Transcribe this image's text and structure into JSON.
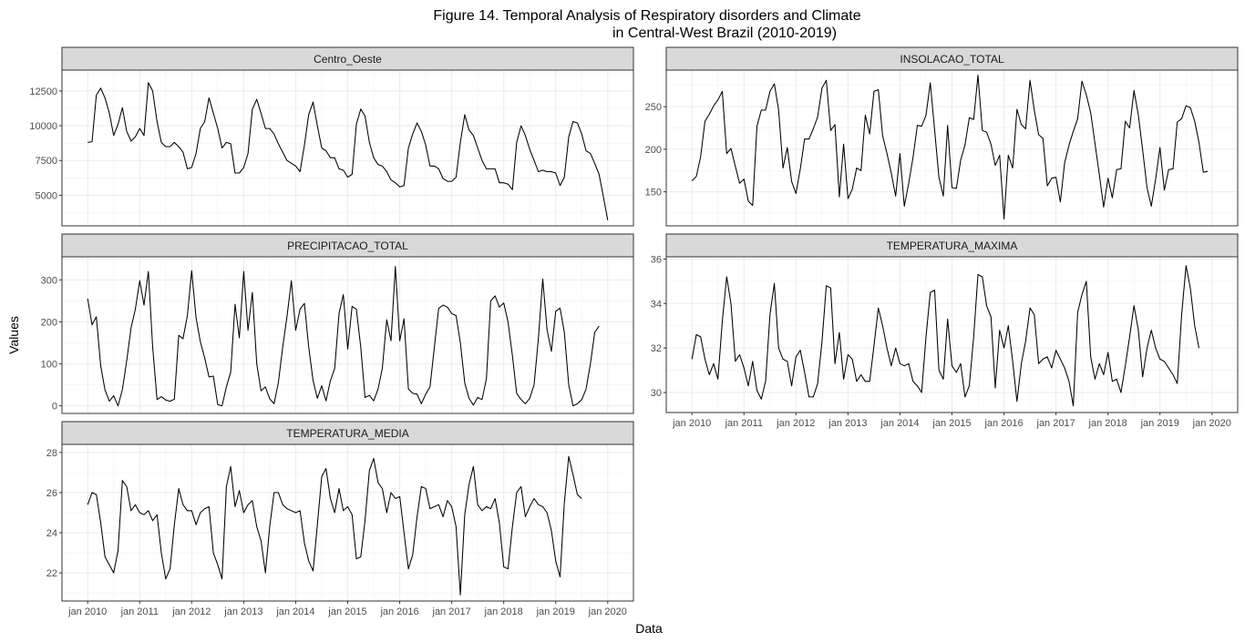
{
  "title_line1": "Figure 14. Temporal Analysis of Respiratory disorders and Climate",
  "title_line2": "in Central-West Brazil (2010-2019)",
  "xlabel": "Data",
  "ylabel": "Values",
  "chart_data": {
    "type": "line",
    "x_start": "2010-01",
    "x_tick_labels": [
      "jan 2010",
      "jan 2011",
      "jan 2012",
      "jan 2013",
      "jan 2014",
      "jan 2015",
      "jan 2016",
      "jan 2017",
      "jan 2018",
      "jan 2019",
      "jan 2020"
    ],
    "grid": true,
    "panels": [
      {
        "name": "Centro_Oeste",
        "yticks": [
          5000,
          7500,
          10000,
          12500
        ],
        "ylim": [
          2800,
          14000
        ],
        "values": [
          8800,
          8850,
          12200,
          12700,
          12000,
          10900,
          9300,
          10100,
          11300,
          9600,
          8900,
          9200,
          9800,
          9300,
          13100,
          12500,
          10300,
          8800,
          8500,
          8500,
          8800,
          8500,
          8100,
          6900,
          7000,
          8000,
          9800,
          10300,
          12000,
          10900,
          9800,
          8400,
          8800,
          8700,
          6600,
          6600,
          7000,
          8000,
          11200,
          11900,
          10900,
          9800,
          9800,
          9400,
          8700,
          8100,
          7500,
          7300,
          7100,
          6700,
          8600,
          10800,
          11700,
          10000,
          8400,
          8200,
          7700,
          7700,
          6900,
          6800,
          6300,
          6500,
          10100,
          11200,
          10700,
          8800,
          7700,
          7200,
          7100,
          6700,
          6100,
          5900,
          5600,
          5700,
          8400,
          9400,
          10200,
          9600,
          8600,
          7100,
          7100,
          6900,
          6200,
          6000,
          6000,
          6300,
          8800,
          10800,
          9700,
          9300,
          8400,
          7500,
          6900,
          6900,
          6900,
          5900,
          5900,
          5800,
          5400,
          8800,
          10000,
          9300,
          8300,
          7500,
          6700,
          6800,
          6700,
          6700,
          6600,
          5700,
          6300,
          9200,
          10300,
          10200,
          9400,
          8200,
          8000,
          7300,
          6500,
          4900,
          3200
        ]
      },
      {
        "name": "INSOLACAO_TOTAL",
        "yticks": [
          150,
          200,
          250
        ],
        "ylim": [
          110,
          293
        ],
        "values": [
          163,
          168,
          191,
          233,
          241,
          251,
          258,
          268,
          195,
          201,
          180,
          160,
          165,
          139,
          134,
          227,
          246,
          246,
          268,
          277,
          246,
          178,
          202,
          162,
          148,
          177,
          212,
          212,
          224,
          238,
          272,
          281,
          222,
          229,
          144,
          206,
          142,
          153,
          178,
          175,
          240,
          218,
          268,
          270,
          216,
          195,
          172,
          145,
          195,
          133,
          160,
          190,
          228,
          227,
          240,
          278,
          222,
          167,
          145,
          228,
          155,
          154,
          187,
          205,
          237,
          235,
          287,
          222,
          220,
          206,
          181,
          193,
          118,
          193,
          178,
          247,
          229,
          224,
          281,
          246,
          217,
          213,
          157,
          166,
          167,
          138,
          184,
          205,
          221,
          236,
          280,
          264,
          243,
          207,
          170,
          132,
          166,
          143,
          176,
          177,
          233,
          225,
          269,
          240,
          199,
          155,
          133,
          165,
          202,
          152,
          176,
          177,
          232,
          236,
          251,
          249,
          233,
          208,
          173,
          174
        ]
      },
      {
        "name": "PRECIPITACAO_TOTAL",
        "yticks": [
          0,
          100,
          200,
          300
        ],
        "ylim": [
          -18,
          355
        ],
        "values": [
          255,
          193,
          212,
          95,
          38,
          11,
          24,
          0,
          39,
          107,
          186,
          230,
          298,
          240,
          320,
          140,
          15,
          22,
          14,
          11,
          16,
          168,
          160,
          215,
          322,
          210,
          153,
          114,
          69,
          71,
          3,
          0,
          45,
          80,
          242,
          162,
          320,
          180,
          270,
          100,
          36,
          45,
          17,
          5,
          55,
          140,
          213,
          298,
          180,
          230,
          244,
          140,
          60,
          18,
          48,
          12,
          60,
          89,
          220,
          265,
          135,
          237,
          230,
          140,
          20,
          25,
          12,
          40,
          90,
          205,
          155,
          332,
          155,
          207,
          40,
          30,
          28,
          5,
          28,
          45,
          140,
          232,
          240,
          235,
          220,
          215,
          150,
          55,
          18,
          2,
          20,
          15,
          65,
          250,
          262,
          235,
          245,
          200,
          120,
          30,
          15,
          5,
          18,
          50,
          160,
          302,
          182,
          130,
          225,
          233,
          175,
          50,
          0,
          5,
          15,
          40,
          100,
          175,
          190
        ]
      },
      {
        "name": "TEMPERATURA_MAXIMA",
        "yticks": [
          30,
          32,
          34,
          36
        ],
        "ylim": [
          29.1,
          36.1
        ],
        "values": [
          31.5,
          32.6,
          32.5,
          31.5,
          30.8,
          31.3,
          30.6,
          33.2,
          35.2,
          34.0,
          31.4,
          31.7,
          31.1,
          30.3,
          31.4,
          30.1,
          29.7,
          30.5,
          33.5,
          34.9,
          32.0,
          31.5,
          31.4,
          30.3,
          31.6,
          31.9,
          30.9,
          29.8,
          29.8,
          30.4,
          32.3,
          34.8,
          34.7,
          31.3,
          32.7,
          30.6,
          31.7,
          31.5,
          30.5,
          30.8,
          30.5,
          30.5,
          32.1,
          33.8,
          33.0,
          32.0,
          31.2,
          32.0,
          31.3,
          31.2,
          31.3,
          30.5,
          30.3,
          30.0,
          32.5,
          34.5,
          34.6,
          31.0,
          30.6,
          33.3,
          31.2,
          30.9,
          31.3,
          29.8,
          30.3,
          32.5,
          35.3,
          35.2,
          33.9,
          33.4,
          30.2,
          32.8,
          32.0,
          33.0,
          31.4,
          29.6,
          31.3,
          32.3,
          33.8,
          33.5,
          31.3,
          31.5,
          31.6,
          31.1,
          31.9,
          31.5,
          31.1,
          30.5,
          29.4,
          33.6,
          34.4,
          35.0,
          31.6,
          30.6,
          31.3,
          30.8,
          31.8,
          30.5,
          30.6,
          30.0,
          31.2,
          32.5,
          33.9,
          32.8,
          30.7,
          32.0,
          32.8,
          32.0,
          31.5,
          31.4,
          31.1,
          30.8,
          30.4,
          33.5,
          35.7,
          34.7,
          33.0,
          32.0
        ]
      },
      {
        "name": "TEMPERATURA_MEDIA",
        "yticks": [
          22,
          24,
          26,
          28
        ],
        "ylim": [
          20.6,
          28.4
        ],
        "values": [
          25.4,
          26.0,
          25.9,
          24.5,
          22.8,
          22.4,
          22.0,
          23.1,
          26.6,
          26.3,
          25.1,
          25.4,
          25.0,
          24.9,
          25.1,
          24.6,
          24.9,
          23.0,
          21.7,
          22.2,
          24.4,
          26.2,
          25.4,
          25.1,
          25.1,
          24.4,
          25.0,
          25.2,
          25.3,
          23.0,
          22.4,
          21.7,
          26.3,
          27.3,
          25.3,
          26.1,
          25.0,
          25.4,
          25.6,
          24.3,
          23.6,
          22.0,
          24.3,
          26.0,
          26.0,
          25.4,
          25.2,
          25.1,
          25.0,
          25.1,
          23.5,
          22.6,
          22.1,
          24.4,
          26.8,
          27.2,
          25.7,
          25.0,
          26.2,
          25.1,
          25.3,
          24.9,
          22.7,
          22.8,
          24.6,
          27.1,
          27.7,
          26.5,
          26.2,
          25.0,
          26.0,
          25.7,
          25.8,
          24.0,
          22.2,
          22.9,
          24.8,
          26.3,
          26.2,
          25.2,
          25.3,
          25.4,
          24.8,
          25.6,
          25.3,
          24.3,
          20.9,
          24.9,
          26.4,
          27.3,
          25.4,
          25.1,
          25.3,
          25.2,
          25.7,
          24.5,
          22.3,
          22.2,
          24.3,
          26.0,
          26.3,
          24.8,
          25.3,
          25.7,
          25.4,
          25.3,
          25.0,
          24.1,
          22.6,
          21.8,
          25.5,
          27.8,
          26.9,
          25.9,
          25.7
        ]
      }
    ]
  }
}
